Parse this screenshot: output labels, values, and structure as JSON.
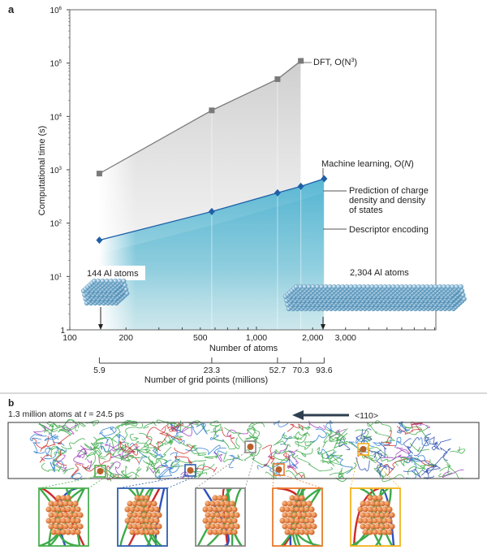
{
  "chart_data": {
    "type": "line",
    "panel_label": "a",
    "xlabel": "Number of atoms",
    "ylabel": "Computational time (s)",
    "xscale": "log",
    "yscale": "log",
    "xlim": [
      100,
      9000
    ],
    "ylim": [
      1,
      1000000
    ],
    "x_ticks": [
      {
        "value": 100,
        "label": "100"
      },
      {
        "value": 200,
        "label": "200"
      },
      {
        "value": 500,
        "label": "500"
      },
      {
        "value": 1000,
        "label": "1,000"
      },
      {
        "value": 2000,
        "label": "2,000"
      },
      {
        "value": 3000,
        "label": "3,000"
      }
    ],
    "y_ticks": [
      {
        "value": 1,
        "label": "1",
        "exp": ""
      },
      {
        "value": 10,
        "label": "10",
        "exp": "1"
      },
      {
        "value": 100,
        "label": "10",
        "exp": "2"
      },
      {
        "value": 1000,
        "label": "10",
        "exp": "3"
      },
      {
        "value": 10000,
        "label": "10",
        "exp": "4"
      },
      {
        "value": 100000,
        "label": "10",
        "exp": "5"
      },
      {
        "value": 1000000,
        "label": "10",
        "exp": "6"
      }
    ],
    "series": [
      {
        "name": "DFT, O(N³)",
        "label_main": "DFT, O(N",
        "label_exp": "3",
        "label_end": ")",
        "color": "#7a7a7a",
        "marker": "square",
        "x": [
          144,
          576,
          1296,
          1728
        ],
        "y": [
          850,
          13000,
          50000,
          110000
        ]
      },
      {
        "name": "Machine learning, O(N)",
        "label_main": "Machine learning, O(",
        "label_it": "N",
        "label_end": ")",
        "color": "#1f5fa8",
        "marker": "diamond",
        "x": [
          144,
          576,
          1296,
          1728,
          2304
        ],
        "y": [
          48,
          165,
          370,
          490,
          680
        ]
      }
    ],
    "annotations": {
      "prediction": [
        "Prediction of charge",
        "density and density",
        "of states"
      ],
      "descriptor": "Descriptor encoding",
      "small_system": "144 Al atoms",
      "large_system": "2,304 Al atoms"
    },
    "secondary_axis": {
      "title": "Number of grid points (millions)",
      "atoms": [
        144,
        576,
        1296,
        1728,
        2304
      ],
      "labels": [
        "5.9",
        "23.3",
        "52.7",
        "70.3",
        "93.6"
      ]
    },
    "grid": false
  },
  "panel_b": {
    "label": "b",
    "caption_pre": "1.3 million atoms at ",
    "caption_var": "t",
    "caption_post": " = 24.5 ps",
    "direction": "<110>",
    "insets": [
      {
        "color": "#4caf50"
      },
      {
        "color": "#2f5fb0"
      },
      {
        "color": "#8a8a8a"
      },
      {
        "color": "#e87a2e"
      },
      {
        "color": "#f2b21c"
      }
    ]
  }
}
